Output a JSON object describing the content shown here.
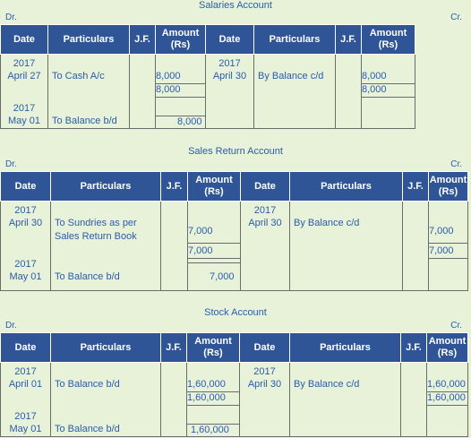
{
  "headers": {
    "date": "Date",
    "particulars": "Particulars",
    "jf": "J.F.",
    "amount": "Amount (Rs)"
  },
  "dr": "Dr.",
  "cr": "Cr.",
  "salaries": {
    "title": "Salaries Account",
    "left": {
      "year1": "2017",
      "date1": "April 27",
      "part1": "To Cash A/c",
      "amt1": "8,000",
      "total": "8,000",
      "year2": "2017",
      "date2": "May 01",
      "part2": "To Balance b/d",
      "amt2": "8,000"
    },
    "right": {
      "year1": "2017",
      "date1": "April 30",
      "part1": "By Balance c/d",
      "amt1": "8,000",
      "total": "8,000"
    }
  },
  "sales_return": {
    "title": "Sales Return Account",
    "left": {
      "year1": "2017",
      "date1": "April 30",
      "part1a": "To Sundries as per",
      "part1b": "Sales Return Book",
      "amt1": "7,000",
      "total": "7,000",
      "year2": "2017",
      "date2": "May 01",
      "part2": "To Balance b/d",
      "amt2": "7,000"
    },
    "right": {
      "year1": "2017",
      "date1": "April 30",
      "part1": "By Balance c/d",
      "amt1": "7,000",
      "total": "7,000"
    }
  },
  "stock": {
    "title": "Stock Account",
    "left": {
      "year1": "2017",
      "date1": "April 01",
      "part1": "To Balance b/d",
      "amt1": "1,60,000",
      "total": "1,60,000",
      "year2": "2017",
      "date2": "May 01",
      "part2": "To Balance b/d",
      "amt2": "1,60,000"
    },
    "right": {
      "year1": "2017",
      "date1": "April 30",
      "part1": "By Balance c/d",
      "amt1": "1,60,000",
      "total": "1,60,000"
    }
  }
}
